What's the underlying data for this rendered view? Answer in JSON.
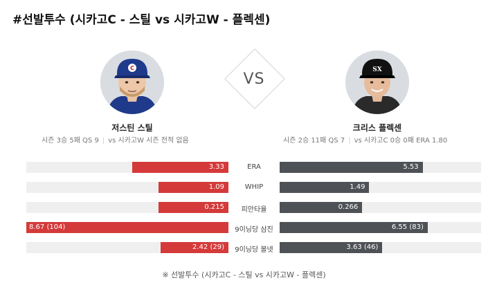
{
  "title": "#선발투수 (시카고C - 스틸 vs 시카고W - 플렉센)",
  "vs_label": "VS",
  "left_player": {
    "name": "저스틴 스틸",
    "record": "시즌 3승 5패 QS 9",
    "vs_record": "vs 시카고W 시즌 전적 없음",
    "color": "#d43a3a"
  },
  "right_player": {
    "name": "크리스 플렉센",
    "record": "시즌 2승 11패 QS 7",
    "vs_record": "vs 시카고C 0승 0패 ERA 1.80",
    "color": "#4e5256"
  },
  "stats": [
    {
      "label": "ERA",
      "left": "3.33",
      "right": "5.53",
      "left_fill": 0.475,
      "right_fill": 0.71
    },
    {
      "label": "WHIP",
      "left": "1.09",
      "right": "1.49",
      "left_fill": 0.345,
      "right_fill": 0.445
    },
    {
      "label": "피안타율",
      "left": "0.215",
      "right": "0.266",
      "left_fill": 0.345,
      "right_fill": 0.41
    },
    {
      "label": "9이닝당 삼진",
      "left": "8.67 (104)",
      "right": "6.55 (83)",
      "left_fill": 1.0,
      "right_fill": 0.735
    },
    {
      "label": "9이닝당 볼넷",
      "left": "2.42 (29)",
      "right": "3.63 (46)",
      "left_fill": 0.335,
      "right_fill": 0.51
    }
  ],
  "footnote": "※ 선발투수 (시카고C - 스틸 vs 시카고W - 플렉센)"
}
